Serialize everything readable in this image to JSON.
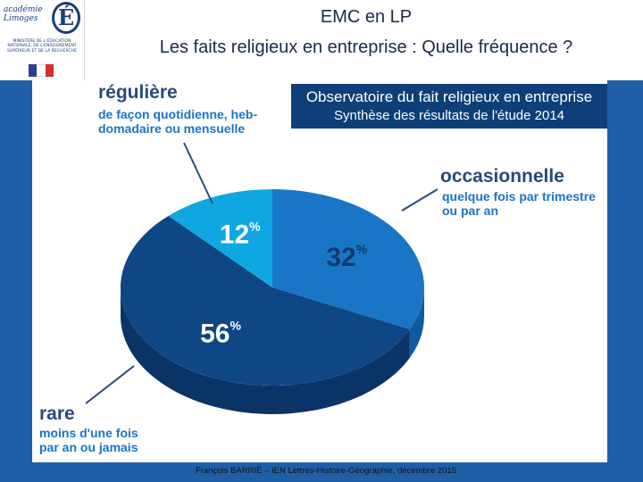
{
  "header": {
    "title_line1": "EMC en LP",
    "title_line2": "Les faits religieux en entreprise : Quelle fréquence ?",
    "logo_text": "académie Limoges",
    "logo_letter": "É",
    "ministry_text": "MINISTÈRE DE L'ÉDUCATION NATIONALE, DE L'ENSEIGNEMENT SUPÉRIEUR ET DE LA RECHERCHE"
  },
  "study_box": {
    "title": "Observatoire du fait religieux en entreprise",
    "subtitle": "Synthèse des résultats de l'étude 2014"
  },
  "categories": {
    "reguliere": {
      "head": "régulière",
      "desc_l1": "de façon quotidienne, heb-",
      "desc_l2": "domadaire ou mensuelle"
    },
    "occasionnelle": {
      "head": "occasionnelle",
      "desc_l1": "quelque fois par trimestre",
      "desc_l2": "ou par an"
    },
    "rare": {
      "head": "rare",
      "desc_l1": "moins d'une fois",
      "desc_l2": "par an ou jamais"
    }
  },
  "chart_data": {
    "type": "pie",
    "slices": [
      {
        "label": "occasionnelle",
        "value": 32,
        "color": "#1976c6",
        "side": "#0f5aa0"
      },
      {
        "label": "rare",
        "value": 56,
        "color": "#0f4785",
        "side": "#0a3366"
      },
      {
        "label": "régulière",
        "value": 12,
        "color": "#0ea7e2",
        "side": "#0a86bb"
      }
    ],
    "value_suffix": "%"
  },
  "colors": {
    "background": "#1f5fa8",
    "study_box": "#0f3f78",
    "category_desc": "#1a73c8"
  },
  "footer": "François BARRIÉ – IEN Lettres-Histoire-Géographie, décembre 2015"
}
